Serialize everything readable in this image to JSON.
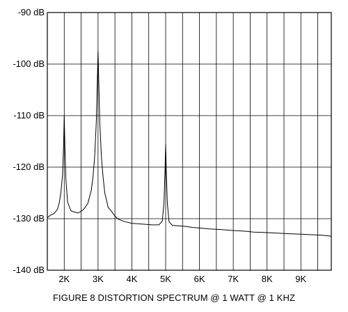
{
  "chart_data": {
    "type": "line",
    "title": "FIGURE 8  DISTORTION SPECTRUM @ 1 WATT @ 1 KHZ",
    "xlabel": "",
    "ylabel": "",
    "xlim": [
      1500,
      9900
    ],
    "ylim": [
      -140,
      -90
    ],
    "y_ticks": [
      -90,
      -100,
      -110,
      -120,
      -130,
      -140
    ],
    "y_tick_labels": [
      "-90 dB",
      "-100 dB",
      "-110 dB",
      "-120 dB",
      "-130 dB",
      "-140 dB"
    ],
    "x_ticks": [
      2000,
      3000,
      4000,
      5000,
      6000,
      7000,
      8000,
      9000
    ],
    "x_tick_labels": [
      "2K",
      "3K",
      "4K",
      "5K",
      "6K",
      "7K",
      "8K",
      "9K"
    ],
    "x_grid": [
      1500,
      2000,
      2500,
      3000,
      3500,
      4000,
      4500,
      5000,
      5500,
      6000,
      6500,
      7000,
      7500,
      8000,
      8500,
      9000,
      9500
    ],
    "grid": true,
    "legend": "none",
    "series": [
      {
        "x": [
          1500,
          1600,
          1700,
          1800,
          1850,
          1900,
          1950,
          1980,
          2000,
          2020,
          2050,
          2100,
          2200,
          2300,
          2400,
          2500,
          2600,
          2700,
          2800,
          2850,
          2900,
          2950,
          2980,
          3000,
          3020,
          3050,
          3100,
          3150,
          3200,
          3300,
          3400,
          3500,
          3600,
          3800,
          4000,
          4200,
          4400,
          4600,
          4800,
          4900,
          4950,
          4980,
          5000,
          5020,
          5050,
          5100,
          5200,
          5400,
          5600,
          5800,
          6000,
          6300,
          6600,
          7000,
          7300,
          7600,
          8000,
          8300,
          8600,
          9000,
          9300,
          9600,
          9900
        ],
        "y": [
          -129.8,
          -129.3,
          -129.0,
          -128.2,
          -127.0,
          -125.0,
          -121.5,
          -116.0,
          -110.0,
          -116.0,
          -122.5,
          -126.8,
          -128.5,
          -128.7,
          -128.9,
          -128.6,
          -128.0,
          -127.0,
          -124.5,
          -122.0,
          -118.0,
          -111.0,
          -103.0,
          -97.5,
          -103.0,
          -111.0,
          -118.0,
          -122.0,
          -125.0,
          -127.8,
          -128.6,
          -129.5,
          -130.1,
          -130.6,
          -130.9,
          -131.0,
          -131.1,
          -131.2,
          -131.2,
          -130.5,
          -127.0,
          -121.0,
          -115.5,
          -121.0,
          -127.0,
          -130.6,
          -131.3,
          -131.4,
          -131.5,
          -131.7,
          -131.8,
          -132.0,
          -132.1,
          -132.3,
          -132.4,
          -132.6,
          -132.7,
          -132.8,
          -132.9,
          -133.0,
          -133.1,
          -133.2,
          -133.4
        ]
      }
    ]
  }
}
